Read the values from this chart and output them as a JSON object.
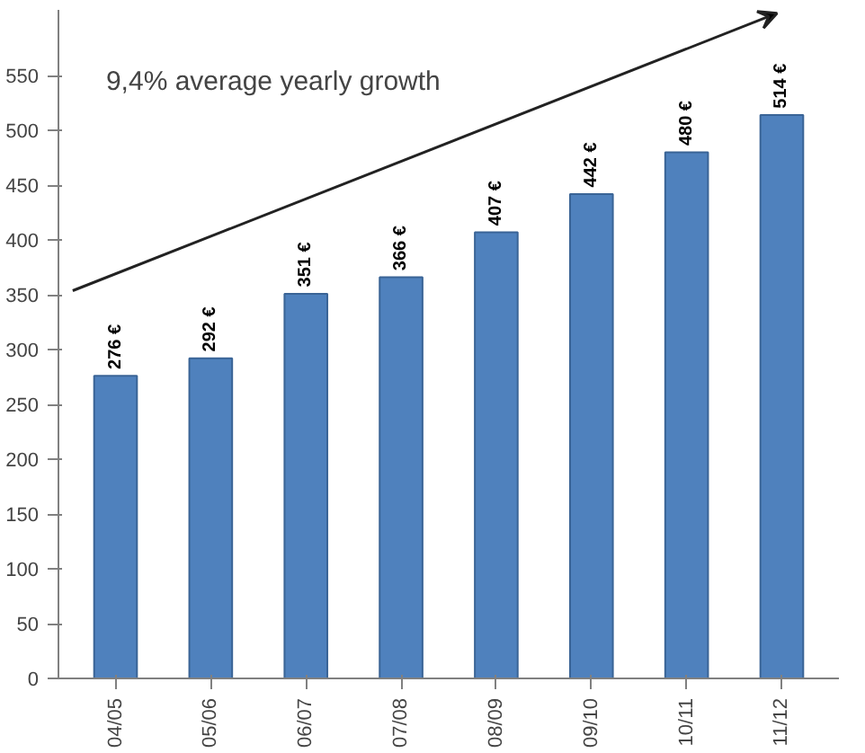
{
  "chart_data": {
    "type": "bar",
    "categories": [
      "04/05",
      "05/06",
      "06/07",
      "07/08",
      "08/09",
      "09/10",
      "10/11",
      "11/12"
    ],
    "values": [
      276,
      292,
      351,
      366,
      407,
      442,
      480,
      514
    ],
    "value_labels": [
      "276 €",
      "292 €",
      "351 €",
      "366 €",
      "407 €",
      "442 €",
      "480 €",
      "514 €"
    ],
    "color": "#4f81bd",
    "ylim": [
      0,
      610
    ],
    "yticks": [
      0,
      50,
      100,
      150,
      200,
      250,
      300,
      350,
      400,
      450,
      500,
      550
    ],
    "grid": false,
    "annotations": [
      "9,4% average yearly growth"
    ]
  }
}
